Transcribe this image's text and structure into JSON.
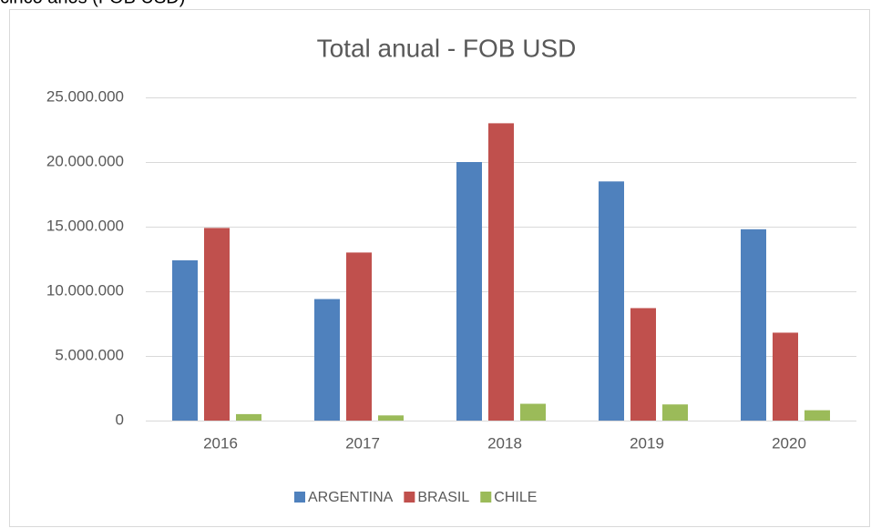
{
  "caption": "cinco años (FOB USD)",
  "chart_data": {
    "type": "bar",
    "title": "Total anual - FOB USD",
    "categories": [
      "2016",
      "2017",
      "2018",
      "2019",
      "2020"
    ],
    "series": [
      {
        "name": "ARGENTINA",
        "color": "#4f81bd",
        "values": [
          12400000,
          9400000,
          20000000,
          18500000,
          14800000
        ]
      },
      {
        "name": "BRASIL",
        "color": "#c0504d",
        "values": [
          14900000,
          13000000,
          23000000,
          8700000,
          6800000
        ]
      },
      {
        "name": "CHILE",
        "color": "#9bbb59",
        "values": [
          500000,
          400000,
          1300000,
          1250000,
          800000
        ]
      }
    ],
    "ylim": [
      0,
      25000000
    ],
    "yticks": [
      0,
      {
        "value": 5000000,
        "label": "5.000.000"
      },
      {
        "value": 10000000,
        "label": "10.000.000"
      },
      {
        "value": 15000000,
        "label": "15.000.000"
      },
      {
        "value": 20000000,
        "label": "20.000.000"
      },
      {
        "value": 25000000,
        "label": "25.000.000"
      }
    ],
    "grid": true,
    "legend": "bottom"
  }
}
